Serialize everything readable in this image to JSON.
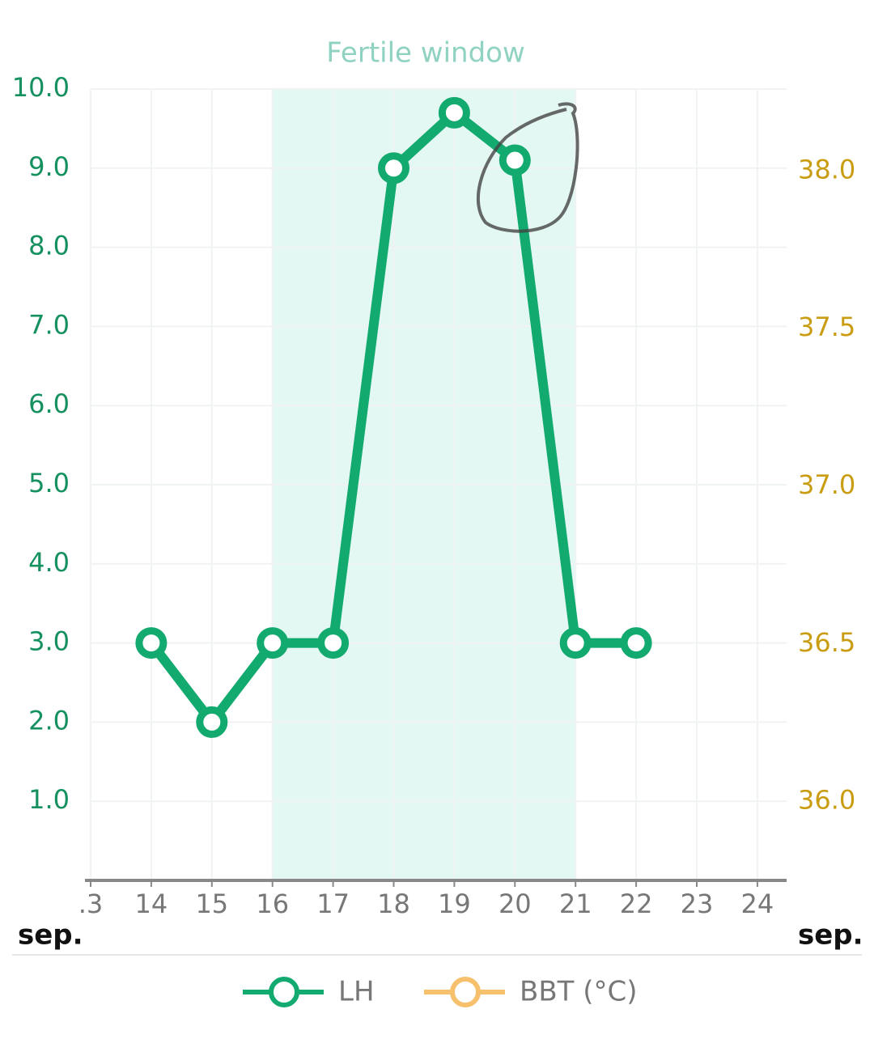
{
  "chart_data": {
    "type": "line",
    "title": "Fertile window",
    "xlabel": "sep.",
    "categories": [
      ".3",
      "14",
      "15",
      "16",
      "17",
      "18",
      "19",
      "20",
      "21",
      "22",
      "23",
      "24"
    ],
    "fertile_window": {
      "start": "16",
      "end": "21",
      "color": "#e3f7f3"
    },
    "series": [
      {
        "name": "LH",
        "color": "#13aa6f",
        "axis": "y",
        "values": [
          null,
          3,
          2,
          3,
          3,
          9,
          9.7,
          9.1,
          3,
          3,
          null,
          null
        ]
      },
      {
        "name": "BBT (°C)",
        "color": "#f6c06c",
        "axis": "y2",
        "values": [
          null,
          null,
          null,
          null,
          null,
          null,
          null,
          null,
          null,
          null,
          null,
          null
        ]
      }
    ],
    "ylim": [
      0,
      10
    ],
    "yticks": [
      {
        "value": 1,
        "label": "1.0"
      },
      {
        "value": 2,
        "label": "2.0"
      },
      {
        "value": 3,
        "label": "3.0"
      },
      {
        "value": 4,
        "label": "4.0"
      },
      {
        "value": 5,
        "label": "5.0"
      },
      {
        "value": 6,
        "label": "6.0"
      },
      {
        "value": 7,
        "label": "7.0"
      },
      {
        "value": 8,
        "label": "8.0"
      },
      {
        "value": 9,
        "label": "9.0"
      },
      {
        "value": 10,
        "label": "10.0"
      }
    ],
    "y2lim": [
      35.75,
      38.26
    ],
    "y2ticks": [
      {
        "value": 36,
        "label": "36.0"
      },
      {
        "value": 36.5,
        "label": "36.5"
      },
      {
        "value": 37,
        "label": "37.0"
      },
      {
        "value": 37.5,
        "label": "37.5"
      },
      {
        "value": 38,
        "label": "38.0"
      }
    ],
    "y_color": "#15905f",
    "y2_color": "#c99c12",
    "grid": true
  }
}
